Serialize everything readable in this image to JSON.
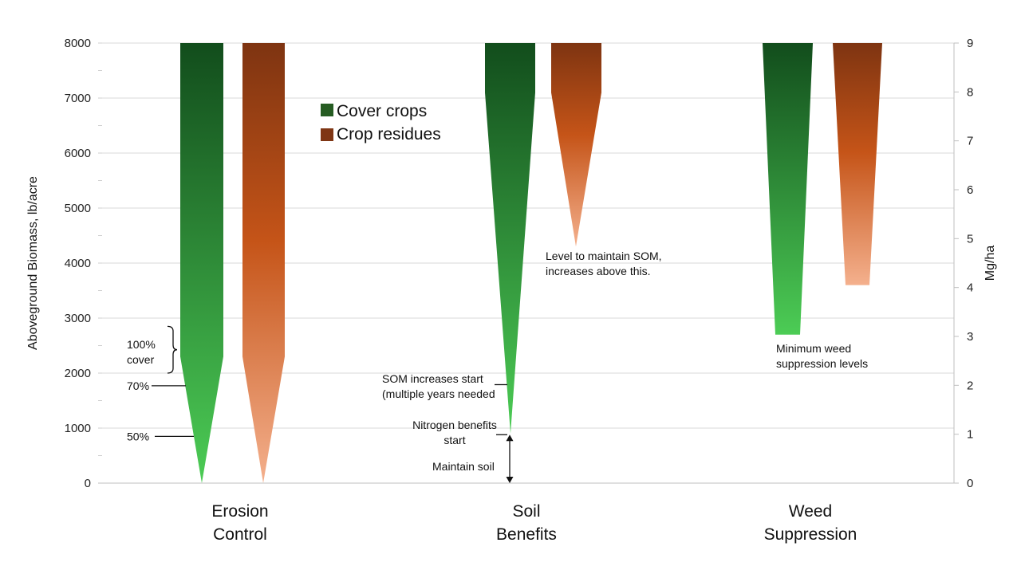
{
  "chart_data": {
    "type": "bar",
    "title": "",
    "xlabel": "",
    "ylabel": "Aboveground Biomass, lb/acre",
    "y2label": "Mg/ha",
    "ylim": [
      0,
      8000
    ],
    "y2lim": [
      0,
      9
    ],
    "yticks": [
      "0",
      "1000",
      "2000",
      "3000",
      "4000",
      "5000",
      "6000",
      "7000",
      "8000"
    ],
    "y2ticks": [
      "0",
      "1",
      "2",
      "3",
      "4",
      "5",
      "6",
      "7",
      "8",
      "9"
    ],
    "grid": true,
    "legend_position": "top-left",
    "categories": [
      {
        "line1": "Erosion",
        "line2": "Control"
      },
      {
        "line1": "Soil",
        "line2": "Benefits"
      },
      {
        "line1": "Weed",
        "line2": "Suppression"
      }
    ],
    "series": [
      {
        "name": "Cover crops",
        "color": "#265c22",
        "gradient_top": "#124d1c",
        "gradient_bottom": "#4ccc55",
        "shapes": [
          {
            "category": 0,
            "top": 8000,
            "taper_start": 2300,
            "tip": 0,
            "tip_shape": "point"
          },
          {
            "category": 1,
            "top": 8000,
            "taper_start": 7100,
            "tip": 900,
            "tip_shape": "point"
          },
          {
            "category": 2,
            "top": 8000,
            "taper_start": 8000,
            "tip": 2700,
            "tip_shape": "flat"
          }
        ]
      },
      {
        "name": "Crop residues",
        "color": "#7f3614",
        "gradient_top": "#7e3411",
        "gradient_mid": "#c55418",
        "gradient_bottom": "#f4b08d",
        "shapes": [
          {
            "category": 0,
            "top": 8000,
            "taper_start": 2300,
            "tip": 0,
            "tip_shape": "point"
          },
          {
            "category": 1,
            "top": 8000,
            "taper_start": 7100,
            "tip": 4300,
            "tip_shape": "point"
          },
          {
            "category": 2,
            "top": 8000,
            "taper_start": 8000,
            "tip": 3600,
            "tip_shape": "flat"
          }
        ]
      }
    ],
    "annotations": {
      "erosion_100": {
        "line1": "100%",
        "line2": "cover",
        "from": 2000,
        "to": 2850
      },
      "erosion_70": {
        "text": "70%",
        "y": 1770
      },
      "erosion_50": {
        "text": "50%",
        "y": 850
      },
      "som_maintain": {
        "line1": "Level to maintain SOM,",
        "line2": "increases above this."
      },
      "som_start": {
        "line1": "SOM increases start",
        "line2": "(multiple years needed",
        "y": 1790
      },
      "nitrogen": {
        "line1": "Nitrogen benefits",
        "line2": "start",
        "y": 880
      },
      "maintain_soil": {
        "text": "Maintain soil",
        "from": 0,
        "to": 880
      },
      "weed_min": {
        "line1": "Minimum weed",
        "line2": "suppression levels"
      }
    }
  }
}
